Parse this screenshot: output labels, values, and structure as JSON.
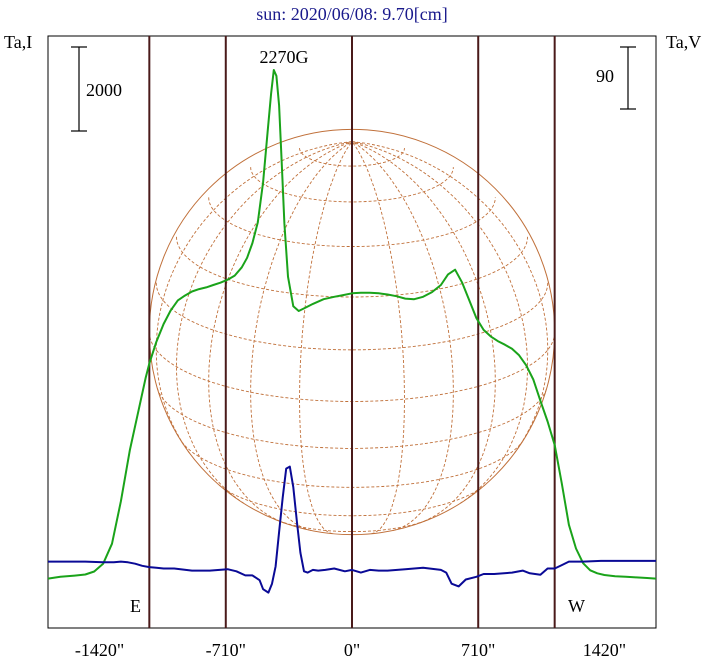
{
  "chart_data": {
    "type": "line",
    "title": "sun: 2020/06/08: 9.70[cm]",
    "ylabel_left": "Ta,I",
    "ylabel_right": "Ta,V",
    "scale_bar_left": "2000",
    "scale_bar_right": "90",
    "annotation_peak": "2270G",
    "label_east": "E",
    "label_west": "W",
    "xlim": [
      -1710,
      1710
    ],
    "x_ticks": [
      {
        "value": -1420,
        "label": "-1420\""
      },
      {
        "value": -710,
        "label": "-710\""
      },
      {
        "value": 0,
        "label": "0\""
      },
      {
        "value": 710,
        "label": "710\""
      },
      {
        "value": 1420,
        "label": "1420\""
      }
    ],
    "vertical_lines": [
      -1140,
      -710,
      0,
      710,
      1140
    ],
    "limb_positions": [
      -1140,
      1140
    ],
    "disk_radius_arcsec": 1140,
    "grid": true,
    "colors": {
      "intensity": "#1aa31a",
      "polarization": "#0a0a96",
      "disk": "#c0703a",
      "vline": "#4a1a1a",
      "title": "#1a1a8c"
    },
    "series": [
      {
        "name": "I",
        "x": [
          -1710,
          -1640,
          -1560,
          -1500,
          -1450,
          -1400,
          -1350,
          -1300,
          -1250,
          -1200,
          -1160,
          -1140,
          -1100,
          -1060,
          -1020,
          -980,
          -940,
          -900,
          -860,
          -820,
          -780,
          -740,
          -700,
          -660,
          -620,
          -590,
          -560,
          -530,
          -500,
          -475,
          -455,
          -440,
          -425,
          -410,
          -395,
          -380,
          -360,
          -330,
          -300,
          -260,
          -220,
          -160,
          -100,
          -50,
          0,
          50,
          100,
          150,
          200,
          250,
          300,
          350,
          400,
          450,
          500,
          540,
          580,
          620,
          660,
          700,
          740,
          780,
          820,
          860,
          900,
          940,
          980,
          1020,
          1060,
          1100,
          1140,
          1180,
          1220,
          1260,
          1300,
          1340,
          1380,
          1420,
          1480,
          1540,
          1600,
          1660,
          1710
        ],
        "values": [
          690,
          720,
          740,
          760,
          810,
          940,
          1280,
          2000,
          2860,
          3550,
          4100,
          4330,
          4700,
          5000,
          5230,
          5400,
          5480,
          5550,
          5590,
          5620,
          5660,
          5700,
          5750,
          5820,
          5960,
          6120,
          6370,
          6720,
          7400,
          8250,
          8900,
          9300,
          9200,
          8700,
          7700,
          6700,
          5800,
          5300,
          5220,
          5280,
          5340,
          5420,
          5460,
          5490,
          5520,
          5530,
          5530,
          5520,
          5500,
          5470,
          5430,
          5420,
          5460,
          5540,
          5660,
          5840,
          5920,
          5700,
          5400,
          5100,
          4900,
          4790,
          4710,
          4650,
          4580,
          4470,
          4300,
          4060,
          3700,
          3350,
          2950,
          2300,
          1600,
          1200,
          950,
          830,
          780,
          750,
          730,
          720,
          710,
          700,
          690
        ]
      },
      {
        "name": "V",
        "x": [
          -1710,
          -1600,
          -1500,
          -1400,
          -1340,
          -1300,
          -1260,
          -1220,
          -1180,
          -1140,
          -1100,
          -1060,
          -1000,
          -900,
          -800,
          -700,
          -650,
          -600,
          -560,
          -520,
          -500,
          -470,
          -450,
          -430,
          -410,
          -390,
          -370,
          -350,
          -330,
          -310,
          -290,
          -270,
          -250,
          -220,
          -190,
          -150,
          -100,
          -40,
          0,
          50,
          100,
          150,
          200,
          300,
          400,
          500,
          530,
          560,
          600,
          640,
          700,
          740,
          800,
          900,
          960,
          1000,
          1060,
          1100,
          1140,
          1180,
          1220,
          1300,
          1400,
          1500,
          1600,
          1710
        ],
        "values": [
          2,
          2,
          2,
          1,
          1,
          2,
          1,
          -1,
          -4,
          -6,
          -7,
          -8,
          -8,
          -11,
          -11,
          -9,
          -12,
          -18,
          -18,
          -25,
          -38,
          -43,
          -30,
          -5,
          45,
          95,
          137,
          140,
          110,
          60,
          15,
          -12,
          -14,
          -10,
          -11,
          -10,
          -8,
          -12,
          -10,
          -14,
          -10,
          -11,
          -11,
          -9,
          -7,
          -10,
          -14,
          -30,
          -34,
          -24,
          -20,
          -16,
          -16,
          -14,
          -11,
          -15,
          -17,
          -8,
          -8,
          -3,
          2,
          2,
          3,
          3,
          3,
          3
        ]
      }
    ]
  }
}
